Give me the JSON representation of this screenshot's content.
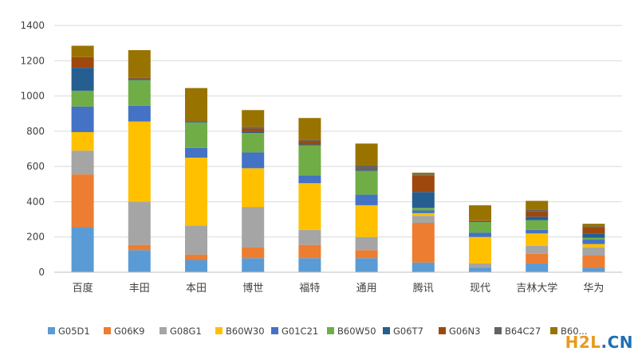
{
  "chart_data": {
    "type": "bar",
    "stacked": true,
    "categories": [
      "百度",
      "丰田",
      "本田",
      "博世",
      "福特",
      "通用",
      "腾讯",
      "现代",
      "吉林大学",
      "华为"
    ],
    "ylim": [
      0,
      1400
    ],
    "yticks": [
      0,
      200,
      400,
      600,
      800,
      1000,
      1200,
      1400
    ],
    "grid": true,
    "legend_position": "bottom",
    "series": [
      {
        "name": "G05D1",
        "color": "#5b9bd5",
        "values": [
          255,
          125,
          70,
          80,
          80,
          80,
          55,
          25,
          50,
          25
        ]
      },
      {
        "name": "G06K9",
        "color": "#ed7d31",
        "values": [
          300,
          30,
          30,
          60,
          75,
          45,
          225,
          0,
          55,
          70
        ]
      },
      {
        "name": "G08G1",
        "color": "#a5a5a5",
        "values": [
          135,
          245,
          165,
          230,
          85,
          75,
          40,
          25,
          45,
          45
        ]
      },
      {
        "name": "B60W30",
        "color": "#ffc000",
        "values": [
          105,
          455,
          385,
          220,
          265,
          180,
          15,
          150,
          70,
          20
        ]
      },
      {
        "name": "G01C21",
        "color": "#4472c4",
        "values": [
          145,
          90,
          55,
          90,
          45,
          60,
          15,
          25,
          20,
          25
        ]
      },
      {
        "name": "B60W50",
        "color": "#70ad47",
        "values": [
          90,
          145,
          145,
          110,
          170,
          135,
          15,
          60,
          55,
          10
        ]
      },
      {
        "name": "G06T7",
        "color": "#255e91",
        "values": [
          130,
          5,
          5,
          5,
          5,
          5,
          90,
          5,
          20,
          25
        ]
      },
      {
        "name": "G06N3",
        "color": "#9e480e",
        "values": [
          60,
          5,
          5,
          20,
          20,
          5,
          95,
          5,
          30,
          35
        ]
      },
      {
        "name": "B64C27",
        "color": "#636363",
        "values": [
          0,
          5,
          0,
          10,
          5,
          20,
          5,
          0,
          10,
          5
        ]
      },
      {
        "name": "B60...",
        "color": "#997300",
        "values": [
          65,
          155,
          185,
          95,
          125,
          125,
          10,
          85,
          50,
          15
        ]
      }
    ]
  },
  "watermark": {
    "part1": "H2L",
    "part2": ".CN"
  }
}
